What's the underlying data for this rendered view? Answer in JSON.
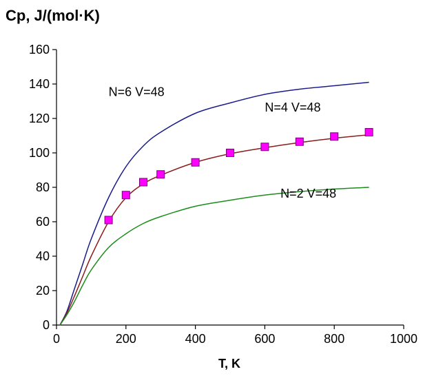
{
  "chart_data": {
    "type": "line",
    "title": "",
    "ylabel": "Cp, J/(mol·K)",
    "xlabel": "T, K",
    "xlim": [
      0,
      1000
    ],
    "ylim": [
      0,
      160
    ],
    "xticks": [
      0,
      200,
      400,
      600,
      800,
      1000
    ],
    "yticks": [
      0,
      20,
      40,
      60,
      80,
      100,
      120,
      140,
      160
    ],
    "grid": false,
    "legend": "none",
    "series": [
      {
        "label": "N=6 V=48",
        "color": "#1a1a8c",
        "style": "line",
        "x": [
          10,
          30,
          50,
          75,
          100,
          150,
          200,
          250,
          300,
          400,
          500,
          600,
          700,
          800,
          900
        ],
        "y": [
          0,
          8,
          20,
          35,
          50,
          74,
          92,
          104,
          112,
          123,
          129,
          134,
          137,
          139,
          141
        ]
      },
      {
        "label": "N=4 V=48",
        "color": "#8b1a1a",
        "style": "line+markers",
        "marker_color": "#ff00ff",
        "x": [
          10,
          30,
          50,
          75,
          100,
          150,
          200,
          250,
          300,
          400,
          500,
          600,
          700,
          800,
          900
        ],
        "y": [
          0,
          7,
          16,
          28,
          40,
          60,
          74,
          82,
          87,
          94.5,
          99.5,
          103,
          106,
          108.5,
          110.5
        ],
        "markers": {
          "x": [
            150,
            200,
            250,
            300,
            400,
            500,
            600,
            700,
            800,
            900
          ],
          "y": [
            61,
            75.5,
            83,
            87.5,
            94.5,
            100,
            103.5,
            106.5,
            109.5,
            112
          ]
        }
      },
      {
        "label": "N=2 V=48",
        "color": "#1a8c1a",
        "style": "line",
        "x": [
          10,
          30,
          50,
          75,
          100,
          150,
          200,
          250,
          300,
          400,
          500,
          600,
          700,
          800,
          900
        ],
        "y": [
          0,
          6,
          13,
          23,
          32,
          45,
          53,
          59,
          63,
          69,
          72.5,
          75.5,
          77.5,
          79,
          80
        ]
      }
    ],
    "annotations": [
      {
        "text": "N=6 V=48",
        "x": 150,
        "y": 133
      },
      {
        "text": "N=4 V=48",
        "x": 600,
        "y": 124
      },
      {
        "text": "N=2 V=48",
        "x": 645,
        "y": 74
      }
    ]
  }
}
